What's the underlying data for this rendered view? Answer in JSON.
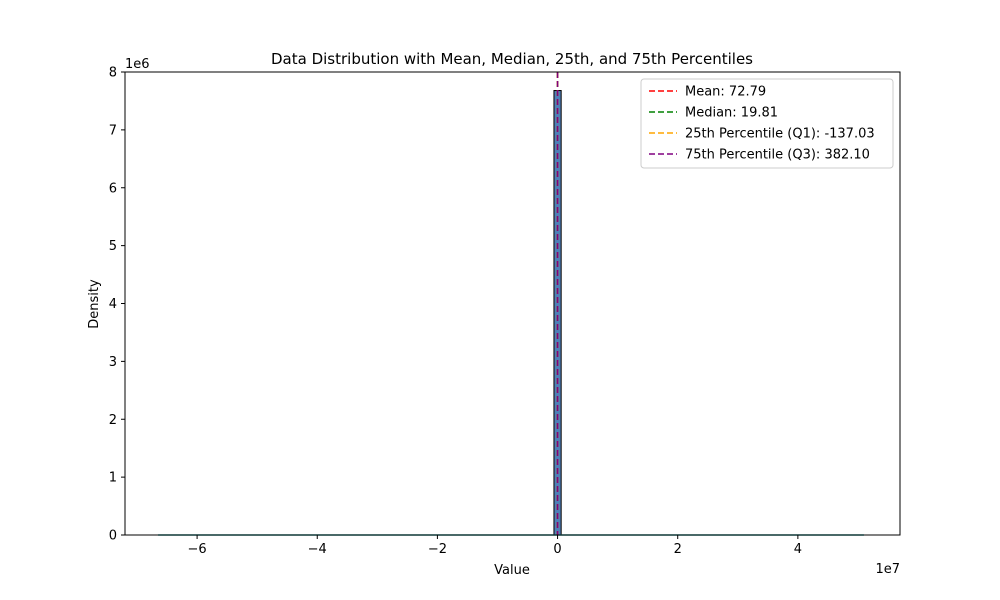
{
  "chart_data": {
    "type": "bar",
    "title": "Data Distribution with Mean, Median, 25th, and 75th Percentiles",
    "xlabel": "Value",
    "ylabel": "Density",
    "x_scale_label": "1e7",
    "y_scale_label": "1e6",
    "xlim": [
      -7.2,
      5.7
    ],
    "ylim": [
      0,
      8.0
    ],
    "x_ticks": [
      -6,
      -4,
      -2,
      0,
      2,
      4
    ],
    "x_tick_labels": [
      "−6",
      "−4",
      "−2",
      "0",
      "2",
      "4"
    ],
    "y_ticks": [
      0,
      1,
      2,
      3,
      4,
      5,
      6,
      7,
      8
    ],
    "y_tick_labels": [
      "0",
      "1",
      "2",
      "3",
      "4",
      "5",
      "6",
      "7",
      "8"
    ],
    "histogram": {
      "color": "#4f7fb8",
      "edge_color": "#000000",
      "bins": [
        {
          "x0": -0.06,
          "x1": 0.06,
          "height": 7.68
        }
      ]
    },
    "kde_line": {
      "color": "#2ca6a4",
      "points": [
        [
          -6.65,
          0.0
        ],
        [
          -0.06,
          0.0
        ],
        [
          0.06,
          0.0
        ],
        [
          5.1,
          0.0
        ]
      ]
    },
    "reference_lines": [
      {
        "label": "Mean: 72.79",
        "value": 72.79,
        "color": "#ff0000"
      },
      {
        "label": "Median: 19.81",
        "value": 19.81,
        "color": "#008000"
      },
      {
        "label": "25th Percentile (Q1): -137.03",
        "value": -137.03,
        "color": "#ffa500"
      },
      {
        "label": "75th Percentile (Q3): 382.10",
        "value": 382.1,
        "color": "#800080"
      }
    ],
    "legend_position": "top-right",
    "grid": false
  }
}
